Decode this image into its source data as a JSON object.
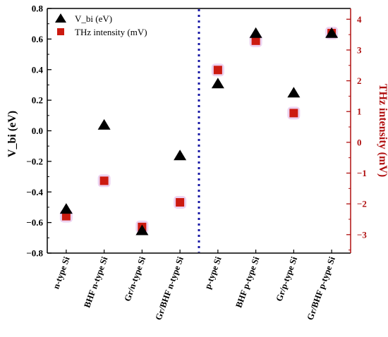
{
  "chart_data": {
    "type": "scatter",
    "categories": [
      "n-type Si",
      "BHF n-type Si",
      "Gr/n-type Si",
      "Gr/BHF n-type Si",
      "p-type Si",
      "BHF p-type Si",
      "Gr/p-type Si",
      "Gr/BHF p-type Si"
    ],
    "series": [
      {
        "name": "V_bi  (eV)",
        "axis": "left",
        "marker": "triangle",
        "color": "#000000",
        "values": [
          -0.51,
          0.04,
          -0.65,
          -0.16,
          0.31,
          0.64,
          0.25,
          0.64
        ]
      },
      {
        "name": "THz intensity (mV)",
        "axis": "right",
        "marker": "square",
        "color": "#cc1a10",
        "halo": "#e7c4ec",
        "values": [
          -2.4,
          -1.25,
          -2.75,
          -1.95,
          2.35,
          3.3,
          0.95,
          3.55
        ]
      }
    ],
    "ylabel": "V_bi  (eV)",
    "ylabel_right": "THz intensity (mV)",
    "ylim": [
      -0.8,
      0.8
    ],
    "ylim_right": [
      -3.6,
      4.35
    ],
    "yticks": [
      "0.8",
      "0.6",
      "0.4",
      "0.2",
      "0.0",
      "−0.2",
      "−0.4",
      "−0.6",
      "−0.8"
    ],
    "yticks_right": [
      "4",
      "3",
      "2",
      "1",
      "0",
      "−1",
      "−2",
      "−3"
    ],
    "divider": "between Gr/BHF n-type Si and p-type Si",
    "divider_color": "#1a1aa6",
    "right_axis_color": "#b01010",
    "legend_position": "top-left",
    "grid": false
  }
}
